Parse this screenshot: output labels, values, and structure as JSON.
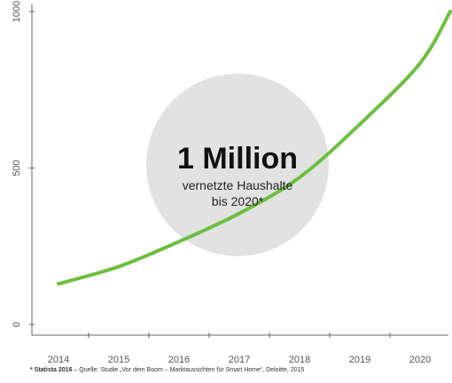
{
  "chart_data": {
    "type": "line",
    "x": [
      "2014",
      "2015",
      "2016",
      "2017",
      "2018",
      "2019",
      "2020"
    ],
    "series": [
      {
        "values": [
          130,
          185,
          265,
          355,
          470,
          640,
          835,
          1000
        ],
        "x_values": [
          2014,
          2015,
          2016,
          2017,
          2018,
          2019,
          2020,
          2020.5
        ]
      }
    ],
    "ylim": [
      0,
      1000
    ],
    "y_ticks": [
      "0",
      "500",
      "1000"
    ],
    "grid": false,
    "line_color": "#6cbf3f"
  },
  "highlight": {
    "value": "1 Million",
    "line1": "vernetzte Haushalte",
    "line2": "bis 2020*",
    "circle_color": "#e2e2e2"
  },
  "footnote": {
    "source_bold": "* Statista 2016",
    "text": " – Quelle: Studie „Vor dem Boom – Marktaussichten für Smart Home“, Deloitte, 2015"
  }
}
